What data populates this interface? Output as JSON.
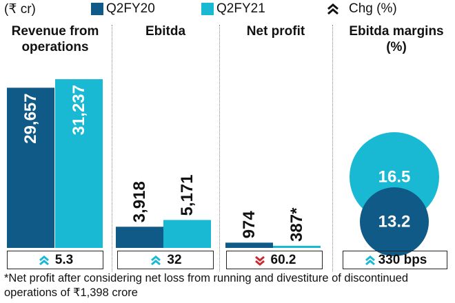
{
  "legend": {
    "unit": "(₹ cr)",
    "series1": "Q2FY20",
    "series2": "Q2FY21",
    "chg": "Chg (%)"
  },
  "colors": {
    "q2fy20": "#0f5a87",
    "q2fy21": "#19b9d4",
    "up": "#19b9d4",
    "down": "#cc2a30"
  },
  "chart_data": {
    "type": "bar",
    "series": [
      {
        "name": "Q2FY20",
        "values": [
          29657,
          3918,
          974
        ]
      },
      {
        "name": "Q2FY21",
        "values": [
          31237,
          5171,
          387
        ]
      }
    ],
    "categories": [
      "Revenue from operations",
      "Ebitda",
      "Net profit"
    ],
    "value_labels": {
      "Q2FY20": [
        "29,657",
        "3,918",
        "974"
      ],
      "Q2FY21": [
        "31,237",
        "5,171",
        "387*"
      ]
    },
    "changes": [
      {
        "direction": "up",
        "value": "5.3"
      },
      {
        "direction": "up",
        "value": "32"
      },
      {
        "direction": "down",
        "value": "60.2"
      }
    ],
    "margins": {
      "title": "Ebitda margins (%)",
      "Q2FY20": "13.2",
      "Q2FY21": "16.5",
      "change": {
        "direction": "up",
        "value": "330 bps"
      }
    }
  },
  "panels": {
    "revenue_title": "Revenue from operations",
    "ebitda_title": "Ebitda",
    "netprofit_title": "Net profit"
  },
  "footnote": "*Net profit after considering net loss from running and divestiture of discontinued operations of ₹1,398 crore"
}
